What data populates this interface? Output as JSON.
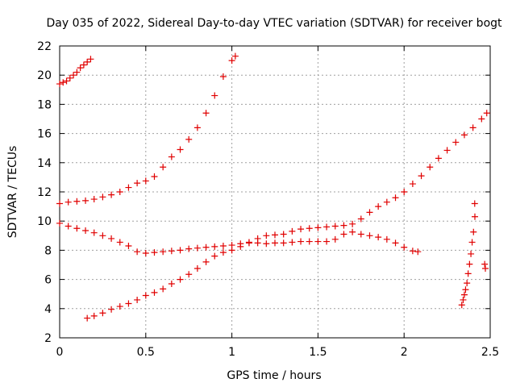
{
  "chart_data": {
    "type": "scatter",
    "title": "Day 035 of 2022, Sidereal Day-to-day VTEC variation (SDTVAR) for receiver bogt",
    "xlabel": "GPS time / hours",
    "ylabel": "SDTVAR / TECUs",
    "xlim": [
      0,
      2.5
    ],
    "ylim": [
      2,
      22
    ],
    "xticks": [
      0,
      0.5,
      1,
      1.5,
      2,
      2.5
    ],
    "xtick_labels": [
      "0",
      "0.5",
      "1",
      "1.5",
      "2",
      "2.5"
    ],
    "yticks": [
      2,
      4,
      6,
      8,
      10,
      12,
      14,
      16,
      18,
      20,
      22
    ],
    "ytick_labels": [
      "2",
      "4",
      "6",
      "8",
      "10",
      "12",
      "14",
      "16",
      "18",
      "20",
      "22"
    ],
    "grid": true,
    "legend": "none",
    "marker": "+",
    "marker_color": "#e00000",
    "series": [
      {
        "x": [
          0.0,
          0.02,
          0.04,
          0.06,
          0.08,
          0.1,
          0.12,
          0.14,
          0.16,
          0.18
        ],
        "y": [
          19.4,
          19.5,
          19.6,
          19.8,
          20.0,
          20.2,
          20.5,
          20.7,
          20.9,
          21.1
        ]
      },
      {
        "x": [
          0.0,
          0.05,
          0.1,
          0.15,
          0.2,
          0.25,
          0.3,
          0.35,
          0.4,
          0.45,
          0.5,
          0.55,
          0.6,
          0.65,
          0.7,
          0.75,
          0.8,
          0.85,
          0.9,
          0.95,
          1.0,
          1.02
        ],
        "y": [
          11.2,
          11.3,
          11.35,
          11.4,
          11.5,
          11.65,
          11.8,
          12.0,
          12.3,
          12.6,
          12.75,
          13.05,
          13.7,
          14.4,
          14.9,
          15.6,
          16.4,
          17.4,
          18.6,
          19.9,
          21.0,
          21.3
        ]
      },
      {
        "x": [
          0.0,
          0.05,
          0.1,
          0.15,
          0.2,
          0.25,
          0.3,
          0.35,
          0.4,
          0.45,
          0.5,
          0.55,
          0.6,
          0.65,
          0.7,
          0.75,
          0.8,
          0.85,
          0.9,
          0.95,
          1.0,
          1.05,
          1.1,
          1.15,
          1.2,
          1.25,
          1.3,
          1.35,
          1.4,
          1.45,
          1.5,
          1.55,
          1.6,
          1.65,
          1.7,
          1.75,
          1.8,
          1.85,
          1.9,
          1.95,
          2.0,
          2.05,
          2.08
        ],
        "y": [
          9.85,
          9.65,
          9.5,
          9.35,
          9.2,
          9.0,
          8.8,
          8.55,
          8.3,
          7.9,
          7.8,
          7.85,
          7.9,
          7.95,
          8.0,
          8.1,
          8.15,
          8.2,
          8.25,
          8.3,
          8.35,
          8.45,
          8.5,
          8.5,
          8.45,
          8.5,
          8.5,
          8.55,
          8.6,
          8.6,
          8.6,
          8.6,
          8.75,
          9.1,
          9.25,
          9.1,
          9.0,
          8.9,
          8.75,
          8.5,
          8.2,
          7.95,
          7.9
        ]
      },
      {
        "x": [
          0.16,
          0.2,
          0.25,
          0.3,
          0.35,
          0.4,
          0.45,
          0.5,
          0.55,
          0.6,
          0.65,
          0.7,
          0.75,
          0.8,
          0.85,
          0.9,
          0.95,
          1.0,
          1.05,
          1.1,
          1.15,
          1.2,
          1.25,
          1.3,
          1.35,
          1.4,
          1.45,
          1.5,
          1.55,
          1.6,
          1.65,
          1.7,
          1.75,
          1.8,
          1.85,
          1.9,
          1.95,
          2.0,
          2.05,
          2.1,
          2.15,
          2.2,
          2.25,
          2.3,
          2.35,
          2.4,
          2.45,
          2.48
        ],
        "y": [
          3.35,
          3.5,
          3.7,
          3.95,
          4.15,
          4.35,
          4.6,
          4.9,
          5.1,
          5.35,
          5.7,
          6.0,
          6.35,
          6.75,
          7.2,
          7.6,
          7.85,
          8.0,
          8.25,
          8.55,
          8.8,
          9.0,
          9.05,
          9.1,
          9.3,
          9.45,
          9.5,
          9.55,
          9.6,
          9.65,
          9.7,
          9.8,
          10.15,
          10.6,
          11.0,
          11.3,
          11.6,
          12.0,
          12.55,
          13.1,
          13.7,
          14.3,
          14.85,
          15.4,
          15.9,
          16.4,
          17.0,
          17.4
        ]
      },
      {
        "x": [
          2.335,
          2.343,
          2.35,
          2.357,
          2.365,
          2.372,
          2.38,
          2.388,
          2.395,
          2.403,
          2.411
        ],
        "y": [
          4.25,
          4.6,
          4.95,
          5.3,
          5.75,
          6.4,
          7.05,
          7.75,
          8.55,
          9.25,
          10.3
        ]
      },
      {
        "x": [
          2.41,
          2.468,
          2.472
        ],
        "y": [
          11.2,
          7.05,
          6.75
        ]
      }
    ]
  }
}
